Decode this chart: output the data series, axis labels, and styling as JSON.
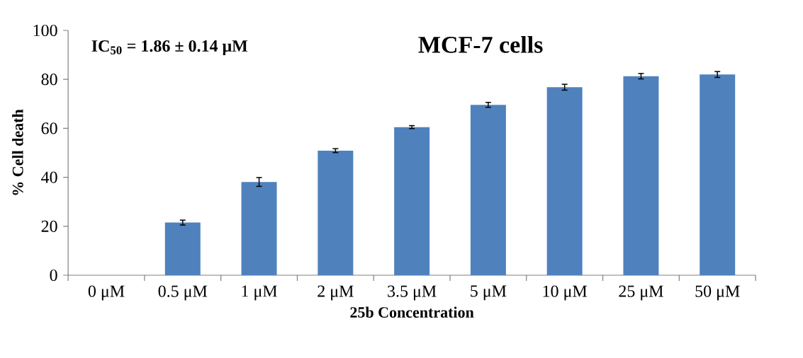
{
  "chart_data": {
    "type": "bar",
    "title": "MCF-7 cells",
    "xlabel": "25b Concentration",
    "ylabel": "% Cell death",
    "annotations": [
      "IC$_{50}$ = 1.86 ± 0.14 μM"
    ],
    "categories": [
      "0 μM",
      "0.5 μM",
      "1 μM",
      "2 μM",
      "3.5 μM",
      "5 μM",
      "10 μM",
      "25 μM",
      "50 μM"
    ],
    "values": [
      0,
      21.5,
      38.1,
      50.9,
      60.5,
      69.6,
      76.8,
      81.3,
      82.0
    ],
    "errors": [
      null,
      1.0,
      1.8,
      0.8,
      0.6,
      1.0,
      1.2,
      1.1,
      1.2
    ],
    "color": "#4f81bd",
    "ylim": [
      0,
      100
    ],
    "yticks": [
      0,
      20,
      40,
      60,
      80,
      100
    ],
    "grid": false
  }
}
